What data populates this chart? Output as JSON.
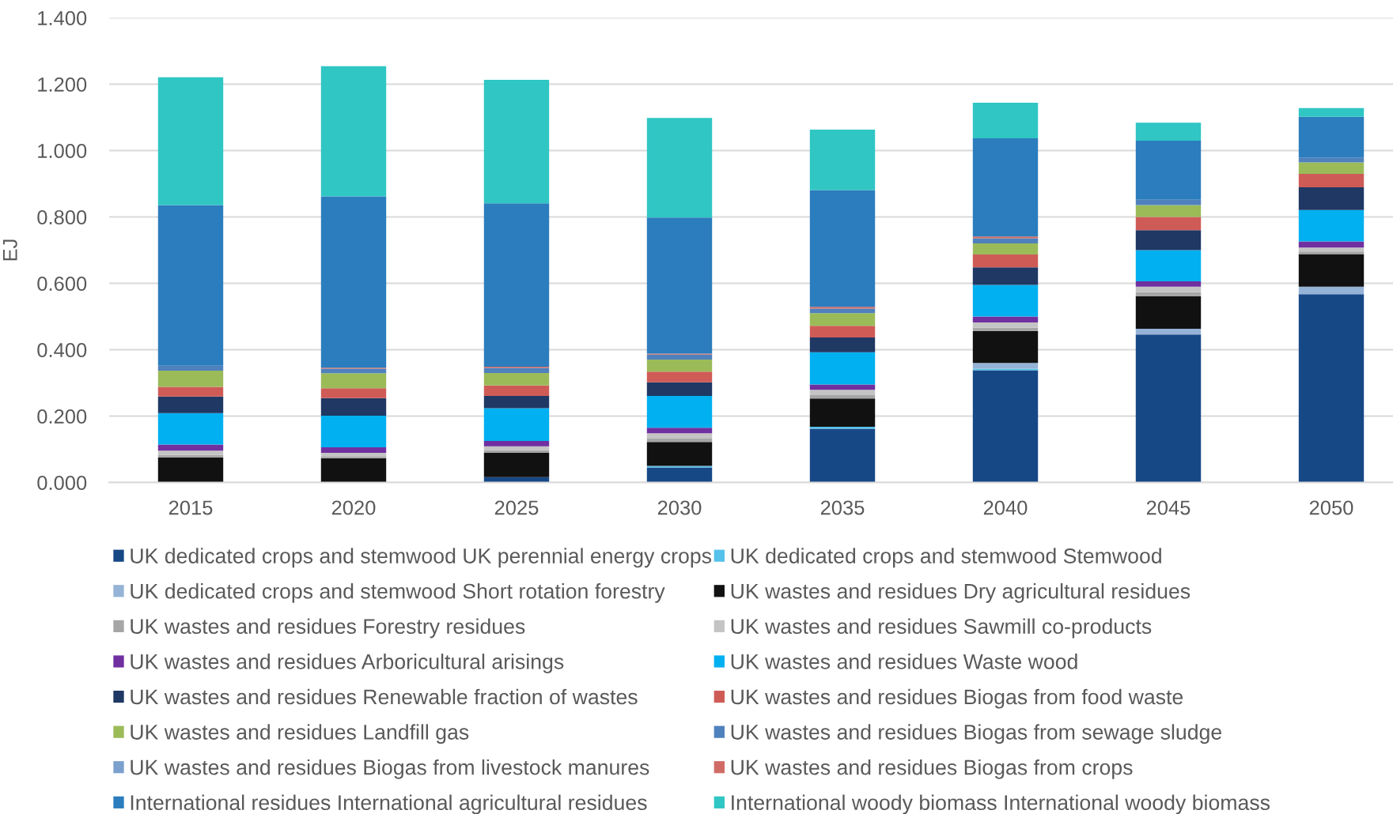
{
  "chart_data": {
    "type": "bar",
    "stacked": true,
    "ylabel": "EJ",
    "categories": [
      "2015",
      "2020",
      "2025",
      "2030",
      "2035",
      "2040",
      "2045",
      "2050"
    ],
    "ylim": [
      0,
      1.4
    ],
    "yticks": [
      {
        "value": 0,
        "label": "0.000"
      },
      {
        "value": 0.2,
        "label": "0.200"
      },
      {
        "value": 0.4,
        "label": "0.400"
      },
      {
        "value": 0.6,
        "label": "0.600"
      },
      {
        "value": 0.8,
        "label": "0.800"
      },
      {
        "value": 1.0,
        "label": "1.000"
      },
      {
        "value": 1.2,
        "label": "1.200"
      },
      {
        "value": 1.4,
        "label": "1.400"
      }
    ],
    "grid": "y",
    "legend": "bottom",
    "series": [
      {
        "name": "UK dedicated crops and stemwood UK perennial energy crops",
        "color": "#174886",
        "values": [
          0,
          0,
          0.016,
          0.045,
          0.162,
          0.338,
          0.446,
          0.567
        ]
      },
      {
        "name": "UK dedicated crops and stemwood Stemwood",
        "color": "#56c1ea",
        "values": [
          0,
          0,
          0,
          0.005,
          0.006,
          0.005,
          0,
          0
        ]
      },
      {
        "name": "UK dedicated crops and stemwood Short rotation forestry",
        "color": "#95b3d7",
        "values": [
          0,
          0,
          0,
          0,
          0,
          0.017,
          0.017,
          0.023
        ]
      },
      {
        "name": "UK wastes and residues Dry agricultural residues",
        "color": "#111111",
        "values": [
          0.075,
          0.073,
          0.073,
          0.072,
          0.085,
          0.096,
          0.098,
          0.098
        ]
      },
      {
        "name": "UK wastes and residues Forestry residues",
        "color": "#a6a6a6",
        "values": [
          0.008,
          0.006,
          0.008,
          0.01,
          0.01,
          0.01,
          0.012,
          0.008
        ]
      },
      {
        "name": "UK wastes and residues Sawmill co-products",
        "color": "#c4c4c4",
        "values": [
          0.013,
          0.01,
          0.012,
          0.016,
          0.016,
          0.016,
          0.017,
          0.012
        ]
      },
      {
        "name": "UK wastes and residues Arboricultural arisings",
        "color": "#7030a0",
        "values": [
          0.018,
          0.017,
          0.016,
          0.017,
          0.016,
          0.018,
          0.016,
          0.018
        ]
      },
      {
        "name": "UK wastes and residues Waste wood",
        "color": "#00b0f0",
        "values": [
          0.095,
          0.095,
          0.099,
          0.096,
          0.097,
          0.095,
          0.094,
          0.095
        ]
      },
      {
        "name": "UK wastes and residues Renewable fraction of wastes",
        "color": "#1f3864",
        "values": [
          0.05,
          0.053,
          0.037,
          0.041,
          0.045,
          0.053,
          0.06,
          0.068
        ]
      },
      {
        "name": "UK wastes and residues Biogas from food waste",
        "color": "#cf5b57",
        "values": [
          0.029,
          0.03,
          0.031,
          0.032,
          0.035,
          0.039,
          0.04,
          0.041
        ]
      },
      {
        "name": "UK wastes and residues Landfill gas",
        "color": "#9bbb59",
        "values": [
          0.049,
          0.045,
          0.038,
          0.036,
          0.038,
          0.033,
          0.036,
          0.034
        ]
      },
      {
        "name": "UK wastes and residues Biogas from sewage sludge",
        "color": "#4f81bd",
        "values": [
          0.015,
          0.014,
          0.015,
          0.015,
          0.014,
          0.016,
          0.016,
          0.015
        ]
      },
      {
        "name": "UK wastes and residues Biogas from livestock manures",
        "color": "#7ba0cd",
        "values": [
          0,
          0,
          0,
          0,
          0,
          0,
          0,
          0
        ]
      },
      {
        "name": "UK wastes and residues Biogas from crops",
        "color": "#d06b66",
        "values": [
          0,
          0.003,
          0.004,
          0.003,
          0.005,
          0.005,
          0,
          0
        ]
      },
      {
        "name": "International residues International agricultural residues",
        "color": "#2b7dbd",
        "values": [
          0.484,
          0.516,
          0.492,
          0.41,
          0.352,
          0.296,
          0.178,
          0.123
        ]
      },
      {
        "name": "International woody biomass International woody biomass",
        "color": "#2fc6c4",
        "values": [
          0.385,
          0.392,
          0.372,
          0.3,
          0.182,
          0.107,
          0.054,
          0.026
        ]
      }
    ]
  }
}
